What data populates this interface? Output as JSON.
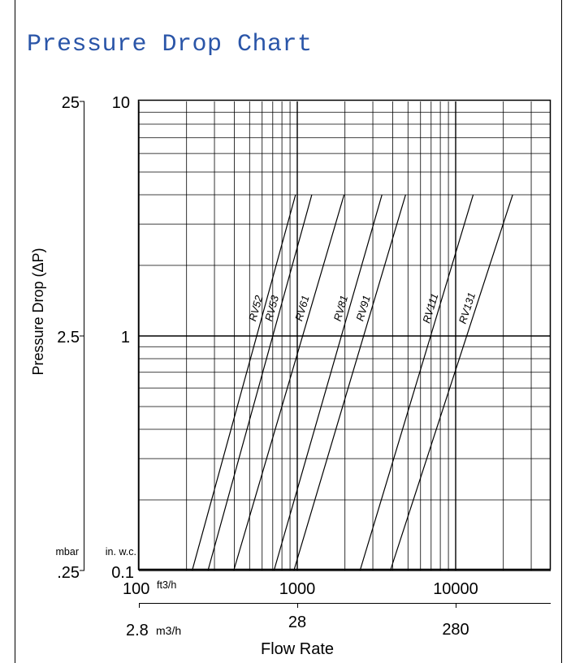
{
  "title": "Pressure Drop Chart",
  "chart_data": {
    "type": "line",
    "title": "Pressure Drop Chart",
    "xlabel": "Flow Rate",
    "ylabel": "Pressure Drop (ΔP)",
    "x_scale": "log",
    "y_scale": "log",
    "xlim": [
      100,
      10000
    ],
    "ylim": [
      0.1,
      10
    ],
    "grid": true,
    "x_unit_primary": "ft3/h",
    "x_unit_secondary": "m3/h",
    "y_unit_primary": "in. w.c.",
    "y_unit_secondary": "mbar",
    "x_ticks_primary": [
      "100",
      "1000",
      "10000"
    ],
    "x_ticks_secondary": [
      "2.8",
      "28",
      "280"
    ],
    "y_ticks_primary": [
      "0.1",
      "1",
      "10"
    ],
    "y_ticks_secondary": [
      ".25",
      "2.5",
      "25"
    ],
    "series": [
      {
        "name": "RV52",
        "x": [
          217,
          975
        ],
        "y": [
          0.1,
          4.0
        ]
      },
      {
        "name": "RV53",
        "x": [
          273,
          1235
        ],
        "y": [
          0.1,
          4.0
        ]
      },
      {
        "name": "RV61",
        "x": [
          397,
          1975
        ],
        "y": [
          0.1,
          4.0
        ]
      },
      {
        "name": "RV81",
        "x": [
          713,
          3425
        ],
        "y": [
          0.1,
          4.0
        ]
      },
      {
        "name": "RV91",
        "x": [
          952,
          4830
        ],
        "y": [
          0.1,
          4.0
        ]
      },
      {
        "name": "RV111",
        "x": [
          2490,
          12900
        ],
        "y": [
          0.1,
          4.0
        ]
      },
      {
        "name": "RV131",
        "x": [
          3870,
          22900
        ],
        "y": [
          0.1,
          4.0
        ]
      }
    ]
  }
}
